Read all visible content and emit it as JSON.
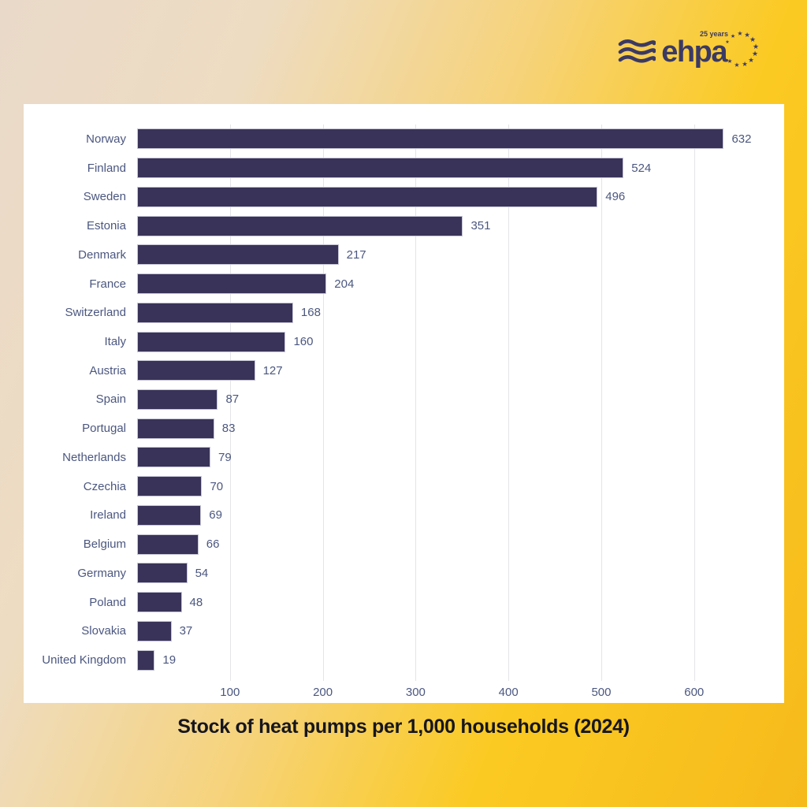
{
  "logo": {
    "name": "ehpa",
    "tagline": "25 years",
    "color": "#3b3a64"
  },
  "chart_data": {
    "type": "bar",
    "orientation": "horizontal",
    "title": "Stock of heat pumps per 1,000 households (2024)",
    "categories": [
      "Norway",
      "Finland",
      "Sweden",
      "Estonia",
      "Denmark",
      "France",
      "Switzerland",
      "Italy",
      "Austria",
      "Spain",
      "Portugal",
      "Netherlands",
      "Czechia",
      "Ireland",
      "Belgium",
      "Germany",
      "Poland",
      "Slovakia",
      "United Kingdom"
    ],
    "values": [
      632,
      524,
      496,
      351,
      217,
      204,
      168,
      160,
      127,
      87,
      83,
      79,
      70,
      69,
      66,
      54,
      48,
      37,
      19
    ],
    "xlabel": "",
    "ylabel": "",
    "xticks": [
      100,
      200,
      300,
      400,
      500,
      600
    ],
    "xlim": [
      0,
      680
    ],
    "grid": true,
    "legend": false,
    "bar_color": "#393359",
    "label_color": "#4b5780",
    "gridline_color": "#e4e4e8",
    "card_background": "#ffffff"
  }
}
